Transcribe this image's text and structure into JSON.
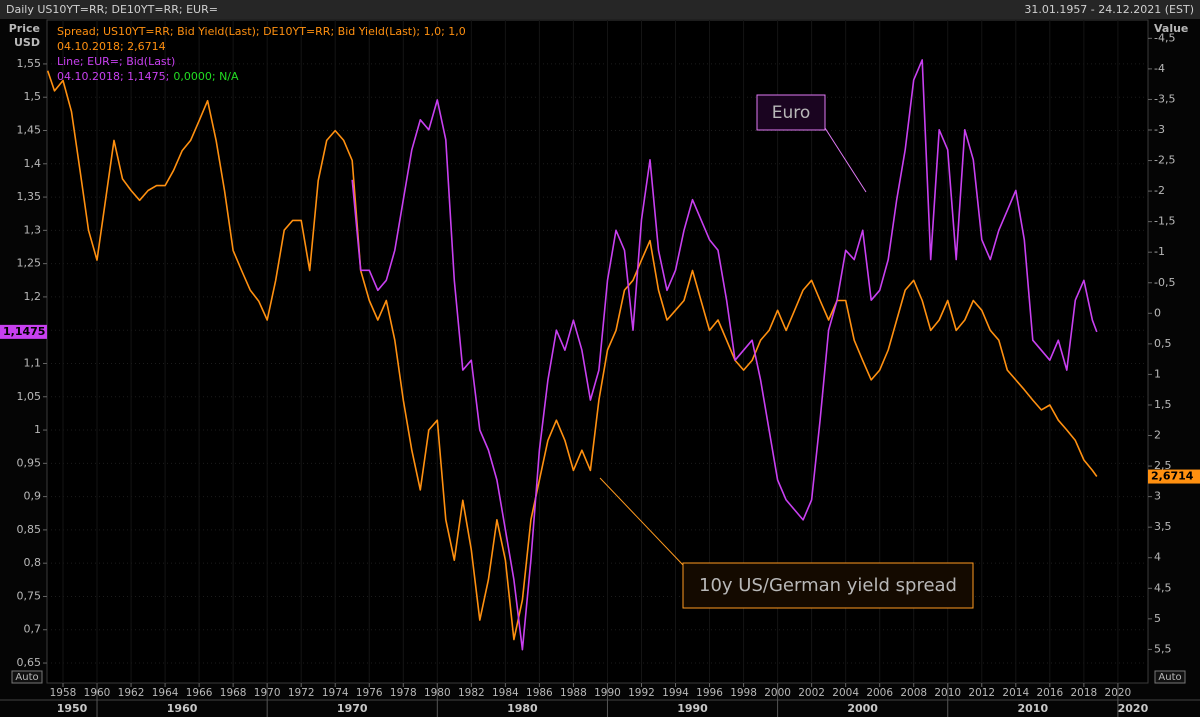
{
  "chart_data": {
    "type": "line",
    "title": "Daily US10YT=RR; DE10YT=RR; EUR=",
    "date_range": "31.01.1957 - 24.12.2021 (EST)",
    "ylabel": [
      "Price",
      "USD"
    ],
    "y2label": "Value",
    "axis_mode_labels": [
      "Auto",
      "Auto"
    ],
    "annotations": [
      {
        "text": "Euro",
        "color": "#e07af5"
      },
      {
        "text": "10y US/German yield spread",
        "color": "#ff9a1f"
      }
    ],
    "grid": true,
    "y2_inverted": true,
    "xlim": [
      1957.06,
      2021.77
    ],
    "ylim": [
      0.62,
      1.616
    ],
    "y2lim": [
      -4.8,
      6.05
    ],
    "xticks": [
      1958,
      1960,
      1962,
      1964,
      1966,
      1968,
      1970,
      1972,
      1974,
      1976,
      1978,
      1980,
      1982,
      1984,
      1986,
      1988,
      1990,
      1992,
      1994,
      1996,
      1998,
      2000,
      2002,
      2004,
      2006,
      2008,
      2010,
      2012,
      2014,
      2016,
      2018,
      2020
    ],
    "decades": [
      1950,
      1960,
      1970,
      1980,
      1990,
      2000,
      2010,
      2020
    ],
    "yticks": [
      {
        "value": 0.65,
        "label": "0,65"
      },
      {
        "value": 0.7,
        "label": "0,7"
      },
      {
        "value": 0.75,
        "label": "0,75"
      },
      {
        "value": 0.8,
        "label": "0,8"
      },
      {
        "value": 0.85,
        "label": "0,85"
      },
      {
        "value": 0.9,
        "label": "0,9"
      },
      {
        "value": 0.95,
        "label": "0,95"
      },
      1,
      {
        "value": 1.05,
        "label": "1,05"
      },
      {
        "value": 1.1,
        "label": "1,1"
      },
      {
        "value": 1.15,
        "label": "1,15"
      },
      {
        "value": 1.2,
        "label": "1,2"
      },
      {
        "value": 1.25,
        "label": "1,25"
      },
      {
        "value": 1.3,
        "label": "1,3"
      },
      {
        "value": 1.35,
        "label": "1,35"
      },
      {
        "value": 1.4,
        "label": "1,4"
      },
      {
        "value": 1.45,
        "label": "1,45"
      },
      {
        "value": 1.5,
        "label": "1,5"
      },
      {
        "value": 1.55,
        "label": "1,55"
      }
    ],
    "y2ticks": [
      {
        "value": -4.5,
        "label": "-4,5"
      },
      -4,
      {
        "value": -3.5,
        "label": "-3,5"
      },
      -3,
      {
        "value": -2.5,
        "label": "-2,5"
      },
      -2,
      {
        "value": -1.5,
        "label": "-1,5"
      },
      -1,
      {
        "value": -0.5,
        "label": "-0,5"
      },
      0,
      {
        "value": 0.5,
        "label": "0,5"
      },
      1,
      {
        "value": 1.5,
        "label": "1,5"
      },
      2,
      {
        "value": 2.5,
        "label": "2,5"
      },
      3,
      {
        "value": 3.5,
        "label": "3,5"
      },
      4,
      {
        "value": 4.5,
        "label": "4,5"
      },
      5,
      {
        "value": 5.5,
        "label": "5,5"
      }
    ],
    "x": [
      1957.1,
      1957.5,
      1958,
      1958.5,
      1959,
      1959.5,
      1960,
      1960.5,
      1961,
      1961.5,
      1962,
      1962.5,
      1963,
      1963.5,
      1964,
      1964.5,
      1965,
      1965.5,
      1966,
      1966.5,
      1967,
      1967.5,
      1968,
      1968.5,
      1969,
      1969.5,
      1970,
      1970.5,
      1971,
      1971.5,
      1972,
      1972.5,
      1973,
      1973.5,
      1974,
      1974.5,
      1975,
      1975.5,
      1976,
      1976.5,
      1977,
      1977.5,
      1978,
      1978.5,
      1979,
      1979.5,
      1980,
      1980.5,
      1981,
      1981.5,
      1982,
      1982.5,
      1983,
      1983.5,
      1984,
      1984.5,
      1985,
      1985.5,
      1986,
      1986.5,
      1987,
      1987.5,
      1988,
      1988.5,
      1989,
      1989.5,
      1990,
      1990.5,
      1991,
      1991.5,
      1992,
      1992.5,
      1993,
      1993.5,
      1994,
      1994.5,
      1995,
      1995.5,
      1996,
      1996.5,
      1997,
      1997.5,
      1998,
      1998.5,
      1999,
      1999.5,
      2000,
      2000.5,
      2001,
      2001.5,
      2002,
      2002.5,
      2003,
      2003.5,
      2004,
      2004.5,
      2005,
      2005.5,
      2006,
      2006.5,
      2007,
      2007.5,
      2008,
      2008.5,
      2009,
      2009.5,
      2010,
      2010.5,
      2011,
      2011.5,
      2012,
      2012.5,
      2013,
      2013.5,
      2014,
      2014.5,
      2015,
      2015.5,
      2016,
      2016.5,
      2017,
      2017.5,
      2018,
      2018.5,
      2018.76
    ],
    "series": [
      {
        "name": "Spread; US10YT=RR; Bid Yield(Last); DE10YT=RR; Bid Yield(Last);  1,0; 1,0",
        "legend_detail": "04.10.2018; 2,6714",
        "color": "#ff9010",
        "axis": "y2",
        "last_label": {
          "value": 2.6714,
          "label": "2,6714"
        },
        "values": [
          -3.97,
          -3.64,
          -3.81,
          -3.3,
          -2.34,
          -1.36,
          -0.87,
          -1.85,
          -2.83,
          -2.2,
          -2.01,
          -1.85,
          -2.01,
          -2.09,
          -2.09,
          -2.34,
          -2.66,
          -2.83,
          -3.15,
          -3.48,
          -2.83,
          -2.0,
          -1.03,
          -0.7,
          -0.38,
          -0.2,
          0.11,
          -0.54,
          -1.36,
          -1.52,
          -1.52,
          -0.7,
          -2.17,
          -2.83,
          -2.99,
          -2.83,
          -2.5,
          -0.7,
          -0.21,
          0.11,
          -0.21,
          0.44,
          1.42,
          2.24,
          2.89,
          1.91,
          1.75,
          3.38,
          4.04,
          3.06,
          3.87,
          5.02,
          4.36,
          3.38,
          4.04,
          5.34,
          4.69,
          3.38,
          2.73,
          2.08,
          1.75,
          2.08,
          2.57,
          2.24,
          2.57,
          1.42,
          0.6,
          0.28,
          -0.38,
          -0.54,
          -0.87,
          -1.19,
          -0.38,
          0.11,
          -0.05,
          -0.21,
          -0.7,
          -0.21,
          0.28,
          0.11,
          0.44,
          0.77,
          0.93,
          0.77,
          0.44,
          0.28,
          -0.05,
          0.28,
          -0.05,
          -0.38,
          -0.54,
          -0.21,
          0.11,
          -0.21,
          -0.21,
          0.44,
          0.77,
          1.09,
          0.93,
          0.6,
          0.11,
          -0.38,
          -0.54,
          -0.21,
          0.28,
          0.11,
          -0.21,
          0.28,
          0.11,
          -0.21,
          -0.05,
          0.28,
          0.44,
          0.93,
          1.09,
          1.25,
          1.42,
          1.58,
          1.5,
          1.75,
          1.91,
          2.08,
          2.4,
          2.57,
          2.6714
        ]
      },
      {
        "name": "Line; EUR=; Bid(Last)",
        "legend_detail": "04.10.2018; 1,1475;",
        "legend_extra": "0,0000; N/A",
        "legend_extra_color": "#22dd22",
        "color": "#c840f0",
        "axis": "y",
        "last_label": {
          "value": 1.1475,
          "label": "1,1475"
        },
        "values": [
          null,
          null,
          null,
          null,
          null,
          null,
          null,
          null,
          null,
          null,
          null,
          null,
          null,
          null,
          null,
          null,
          null,
          null,
          null,
          null,
          null,
          null,
          null,
          null,
          null,
          null,
          null,
          null,
          null,
          null,
          null,
          null,
          null,
          null,
          null,
          null,
          1.376,
          1.24,
          1.24,
          1.21,
          1.225,
          1.27,
          1.346,
          1.421,
          1.466,
          1.451,
          1.496,
          1.436,
          1.225,
          1.09,
          1.105,
          1.0,
          0.97,
          0.925,
          0.85,
          0.775,
          0.67,
          0.805,
          0.97,
          1.075,
          1.15,
          1.12,
          1.165,
          1.12,
          1.045,
          1.09,
          1.225,
          1.3,
          1.27,
          1.15,
          1.316,
          1.406,
          1.27,
          1.21,
          1.24,
          1.3,
          1.346,
          1.316,
          1.286,
          1.27,
          1.195,
          1.105,
          1.12,
          1.135,
          1.075,
          1.0,
          0.925,
          0.895,
          0.88,
          0.865,
          0.895,
          1.015,
          1.15,
          1.195,
          1.27,
          1.256,
          1.3,
          1.195,
          1.21,
          1.256,
          1.346,
          1.421,
          1.526,
          1.556,
          1.256,
          1.451,
          1.421,
          1.256,
          1.451,
          1.406,
          1.286,
          1.256,
          1.3,
          1.33,
          1.36,
          1.286,
          1.135,
          1.12,
          1.105,
          1.135,
          1.09,
          1.195,
          1.225,
          1.165,
          1.1475
        ]
      }
    ]
  }
}
